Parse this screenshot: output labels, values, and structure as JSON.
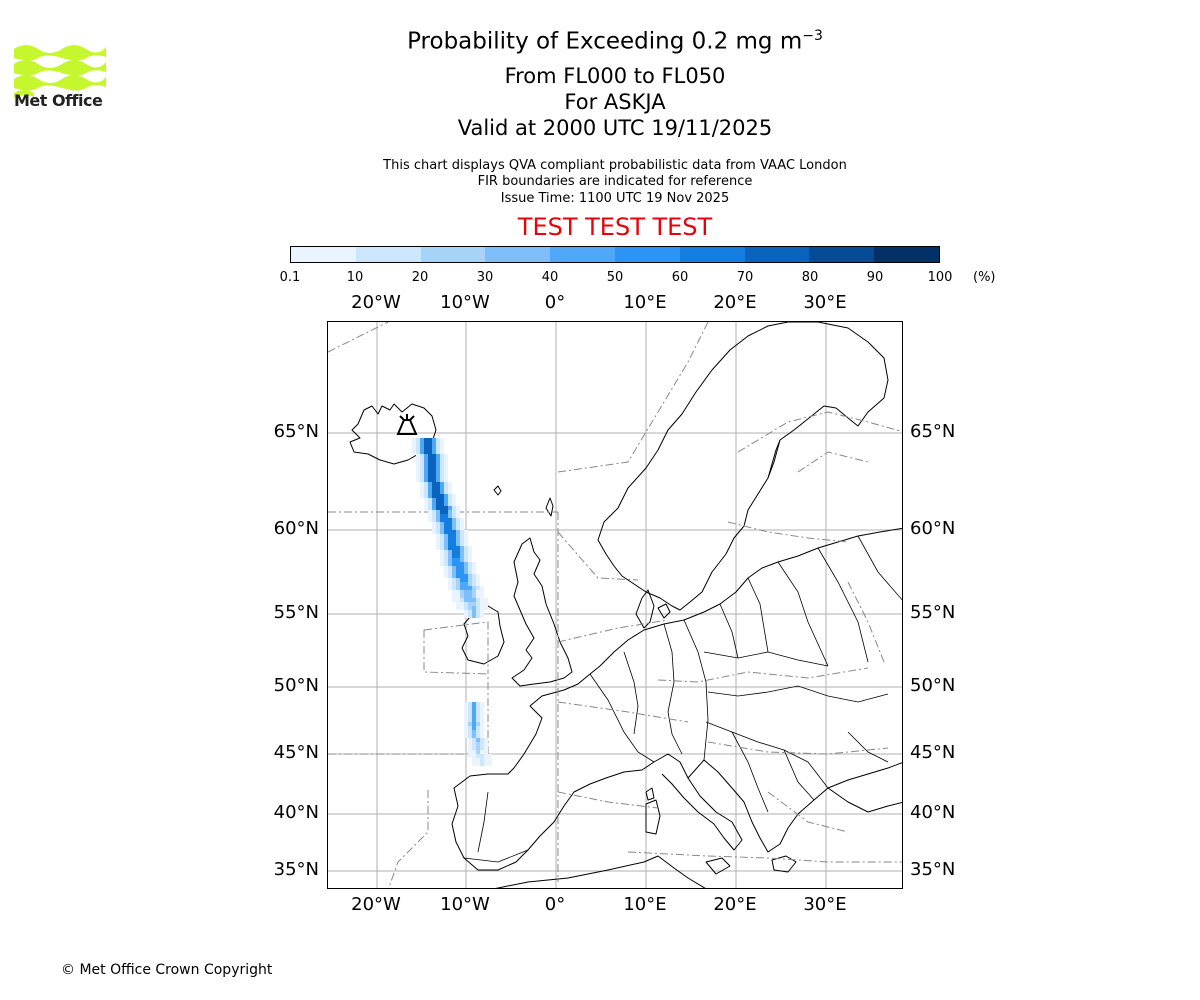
{
  "logo": {
    "brand": "Met Office",
    "color": "#c6f72e"
  },
  "titles": {
    "main_prefix": "Probability of Exceeding 0.2 mg m",
    "main_exponent": "−3",
    "levels": "From FL000 to FL050",
    "volcano": "For ASKJA",
    "valid": "Valid at 2000 UTC 19/11/2025"
  },
  "subtitles": {
    "line1": "This chart displays QVA compliant probabilistic data from VAAC London",
    "line2": "FIR boundaries are indicated for reference",
    "line3": "Issue Time: 1100 UTC 19 Nov 2025"
  },
  "test_banner": {
    "text": "TEST TEST TEST",
    "color": "#e8000b"
  },
  "colorbar": {
    "ticks": [
      "0.1",
      "10",
      "20",
      "30",
      "40",
      "50",
      "60",
      "70",
      "80",
      "90",
      "100"
    ],
    "unit": "(%)",
    "colors": [
      "#eaf4ff",
      "#cce6fc",
      "#a8d3f8",
      "#7ebefb",
      "#4ea8f7",
      "#2b94f4",
      "#147ee0",
      "#0a63bd",
      "#064b96",
      "#033067"
    ]
  },
  "map": {
    "lon_labels": [
      "20°W",
      "10°W",
      "0°",
      "10°E",
      "20°E",
      "30°E"
    ],
    "lat_labels": [
      "65°N",
      "60°N",
      "55°N",
      "50°N",
      "45°N",
      "40°N",
      "35°N"
    ],
    "volcano_name": "ASKJA"
  },
  "chart_data": {
    "type": "heatmap",
    "title": "Probability of Exceeding 0.2 mg m−3",
    "quantity": "probability",
    "units": "%",
    "color_bins": [
      0.1,
      10,
      20,
      30,
      40,
      50,
      60,
      70,
      80,
      90,
      100
    ],
    "lon_range": [
      -26,
      38
    ],
    "lat_range": [
      33.5,
      71
    ],
    "plume_core_track": [
      {
        "lon": -14.5,
        "lat": 64.8,
        "prob": 95
      },
      {
        "lon": -13.8,
        "lat": 62.5,
        "prob": 95
      },
      {
        "lon": -12.0,
        "lat": 60.0,
        "prob": 85
      },
      {
        "lon": -10.8,
        "lat": 57.5,
        "prob": 70
      },
      {
        "lon": -9.5,
        "lat": 55.5,
        "prob": 30
      },
      {
        "lon": -9.5,
        "lat": 47.5,
        "prob": 45
      },
      {
        "lon": -8.5,
        "lat": 44.5,
        "prob": 10
      }
    ]
  },
  "footer": {
    "copyright": "© Met Office Crown Copyright"
  }
}
